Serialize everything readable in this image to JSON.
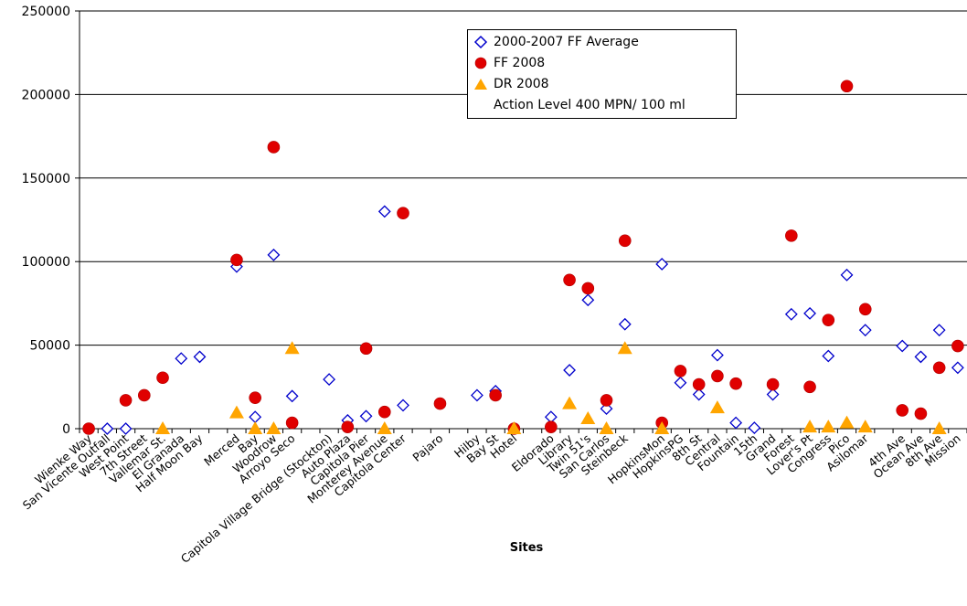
{
  "chart_data": {
    "type": "scatter",
    "title": "",
    "xlabel": "Sites",
    "ylabel": "",
    "ylim": [
      0,
      250000
    ],
    "yticks": [
      "0",
      "50000",
      "100000",
      "150000",
      "200000",
      "250000"
    ],
    "grid": true,
    "legend_position": "top-center",
    "categories": [
      "Wienke Way",
      "San Vicente Outfall",
      "West Point",
      "7th Street",
      "Vallemar St.",
      "El Granada",
      "Half Moon Bay",
      "",
      "Merced",
      "Bay",
      "Woodrow",
      "Arroyo Seco",
      "",
      "Capitola Village Bridge (Stockton)",
      "Auto Plaza",
      "Capitola Pier",
      "Monterey Avenue",
      "Capitola Center",
      "",
      "Pajaro",
      "",
      "Hilby",
      "Bay St",
      "Hotel",
      "",
      "Eldorado",
      "Library",
      "Twin 51's",
      "San Carlos",
      "Steinbeck",
      "",
      "HopkinsMon",
      "HopkinsPG",
      "8th St",
      "Central",
      "Fountain",
      "15th",
      "Grand",
      "Forest",
      "Lover's Pt",
      "Congress",
      "Pico",
      "Asilomar",
      "",
      "4th Ave",
      "Ocean Ave",
      "8th Ave",
      "Mission"
    ],
    "series": [
      {
        "name": "2000-2007 FF Average",
        "marker": "diamond-open",
        "color": "#0000cc",
        "values": [
          null,
          0,
          0,
          null,
          null,
          42000,
          43000,
          null,
          97000,
          7000,
          104000,
          19500,
          null,
          29500,
          5000,
          7500,
          130000,
          14000,
          null,
          null,
          null,
          20000,
          22500,
          null,
          null,
          7000,
          35000,
          77000,
          12000,
          62500,
          null,
          98500,
          27500,
          20500,
          44000,
          3500,
          500,
          20500,
          68500,
          69000,
          43500,
          92000,
          59000,
          null,
          49500,
          43000,
          59000,
          36500
        ]
      },
      {
        "name": "FF 2008",
        "marker": "circle",
        "color": "#e00000",
        "values": [
          0,
          null,
          17000,
          20000,
          30500,
          null,
          null,
          null,
          101000,
          18500,
          168500,
          3500,
          null,
          null,
          1000,
          48000,
          10000,
          129000,
          null,
          15000,
          null,
          null,
          20000,
          0,
          null,
          1000,
          89000,
          84000,
          17000,
          112500,
          null,
          3500,
          34500,
          26500,
          31500,
          27000,
          null,
          26500,
          115500,
          25000,
          65000,
          205000,
          71500,
          null,
          11000,
          9000,
          36500,
          49500
        ]
      },
      {
        "name": "DR 2008",
        "marker": "triangle",
        "color": "#ffa500",
        "values": [
          null,
          null,
          null,
          null,
          0,
          null,
          null,
          null,
          9500,
          0,
          0,
          48000,
          null,
          null,
          null,
          null,
          0,
          null,
          null,
          null,
          null,
          null,
          null,
          0,
          null,
          null,
          15000,
          6000,
          0,
          48000,
          null,
          0,
          null,
          null,
          12500,
          null,
          null,
          null,
          null,
          1000,
          1000,
          3500,
          1000,
          null,
          null,
          null,
          0,
          null
        ]
      },
      {
        "name": "Action Level 400 MPN/ 100 ml",
        "marker": "none",
        "color": "#ffffff",
        "values": []
      }
    ]
  }
}
